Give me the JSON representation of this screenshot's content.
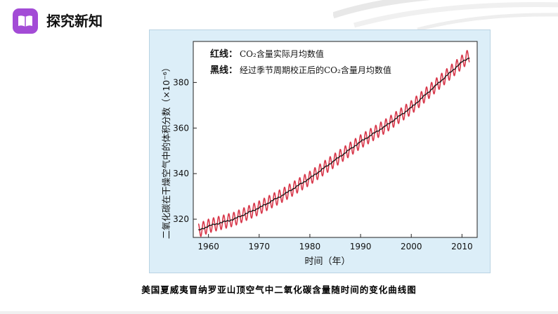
{
  "header": {
    "title": "探究新知",
    "icon": "book-icon",
    "icon_color": "#a34bd6"
  },
  "caption": "美国夏威夷冒纳罗亚山顶空气中二氧化碳含量随时间的变化曲线图",
  "chart_data": {
    "type": "line",
    "title": "",
    "xlabel": "时间（年）",
    "ylabel": "二氧化碳在干燥空气中的体积分数（×10⁻⁶）",
    "xlim": [
      1957,
      2013
    ],
    "ylim": [
      312,
      398
    ],
    "xticks": [
      1960,
      1970,
      1980,
      1990,
      2000,
      2010
    ],
    "yticks": [
      320,
      340,
      360,
      380
    ],
    "grid": false,
    "legend": {
      "position": "top-left",
      "red_label": "红线：",
      "red_text": "CO₂含量实际月均数值",
      "black_label": "黑线：",
      "black_text": "经过季节周期校正后的CO₂含量月均数值"
    },
    "series": [
      {
        "name": "CO₂含量实际月均数值",
        "color": "#d8384b",
        "style": "seasonal",
        "seasonal_amplitude": 3,
        "x": [
          1958,
          1960,
          1965,
          1970,
          1975,
          1980,
          1985,
          1990,
          1995,
          2000,
          2005,
          2010,
          2011.5
        ],
        "y": [
          315,
          317,
          320,
          325,
          331,
          338,
          346,
          354,
          361,
          369,
          379,
          389,
          392
        ]
      },
      {
        "name": "经过季节周期校正后的CO₂含量月均数值",
        "color": "#111111",
        "style": "smooth",
        "x": [
          1958,
          1960,
          1965,
          1970,
          1975,
          1980,
          1985,
          1990,
          1995,
          2000,
          2005,
          2010,
          2011.5
        ],
        "y": [
          315,
          317,
          320,
          325,
          331,
          338,
          346,
          354,
          361,
          369,
          379,
          389,
          391
        ]
      }
    ]
  }
}
